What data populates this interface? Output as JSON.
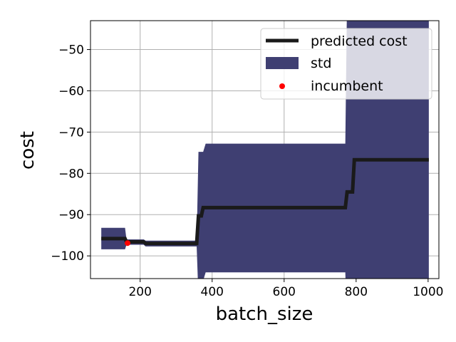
{
  "chart_data": {
    "type": "line",
    "xlabel": "batch_size",
    "ylabel": "cost",
    "xlim": [
      62,
      1030
    ],
    "ylim": [
      -105.5,
      -43
    ],
    "xticks": [
      200,
      400,
      600,
      800,
      1000
    ],
    "yticks": [
      -100,
      -90,
      -80,
      -70,
      -60,
      -50
    ],
    "xtick_labels": [
      "200",
      "400",
      "600",
      "800",
      "1000"
    ],
    "ytick_labels": [
      "−100",
      "−90",
      "−80",
      "−70",
      "−60",
      "−50"
    ],
    "grid": true,
    "legend_position": "top-right",
    "legend": [
      {
        "key": "predicted",
        "label": "predicted cost"
      },
      {
        "key": "std",
        "label": "std"
      },
      {
        "key": "incumbent",
        "label": "incumbent"
      }
    ],
    "colors": {
      "predicted": "#1a1a1a",
      "std": "#3f3f72",
      "incumbent": "#ff0000",
      "grid": "#b0b0b0"
    },
    "predicted_cost": {
      "x": [
        92,
        158,
        162,
        210,
        215,
        357,
        362,
        370,
        375,
        382,
        770,
        775,
        790,
        795,
        1002
      ],
      "y": [
        -95.8,
        -95.8,
        -96.6,
        -96.6,
        -97.0,
        -97.0,
        -90.3,
        -90.3,
        -88.3,
        -88.3,
        -88.3,
        -84.5,
        -84.5,
        -76.7,
        -76.7
      ]
    },
    "std_band": {
      "x": [
        92,
        158,
        162,
        210,
        215,
        357,
        362,
        370,
        375,
        382,
        770,
        775,
        790,
        795,
        1002
      ],
      "upper": [
        -93.2,
        -93.2,
        -96.0,
        -96.0,
        -96.3,
        -96.3,
        -74.8,
        -74.8,
        -74.8,
        -72.8,
        -72.8,
        -36.0,
        -36.0,
        -36.0,
        -36.0
      ],
      "lower": [
        -98.4,
        -98.4,
        -97.3,
        -97.3,
        -97.7,
        -97.7,
        -110.0,
        -110.0,
        -106.0,
        -104.0,
        -104.0,
        -120.0,
        -120.0,
        -120.0,
        -120.0
      ]
    },
    "incumbent": {
      "x": [
        165
      ],
      "y": [
        -96.9
      ]
    }
  }
}
